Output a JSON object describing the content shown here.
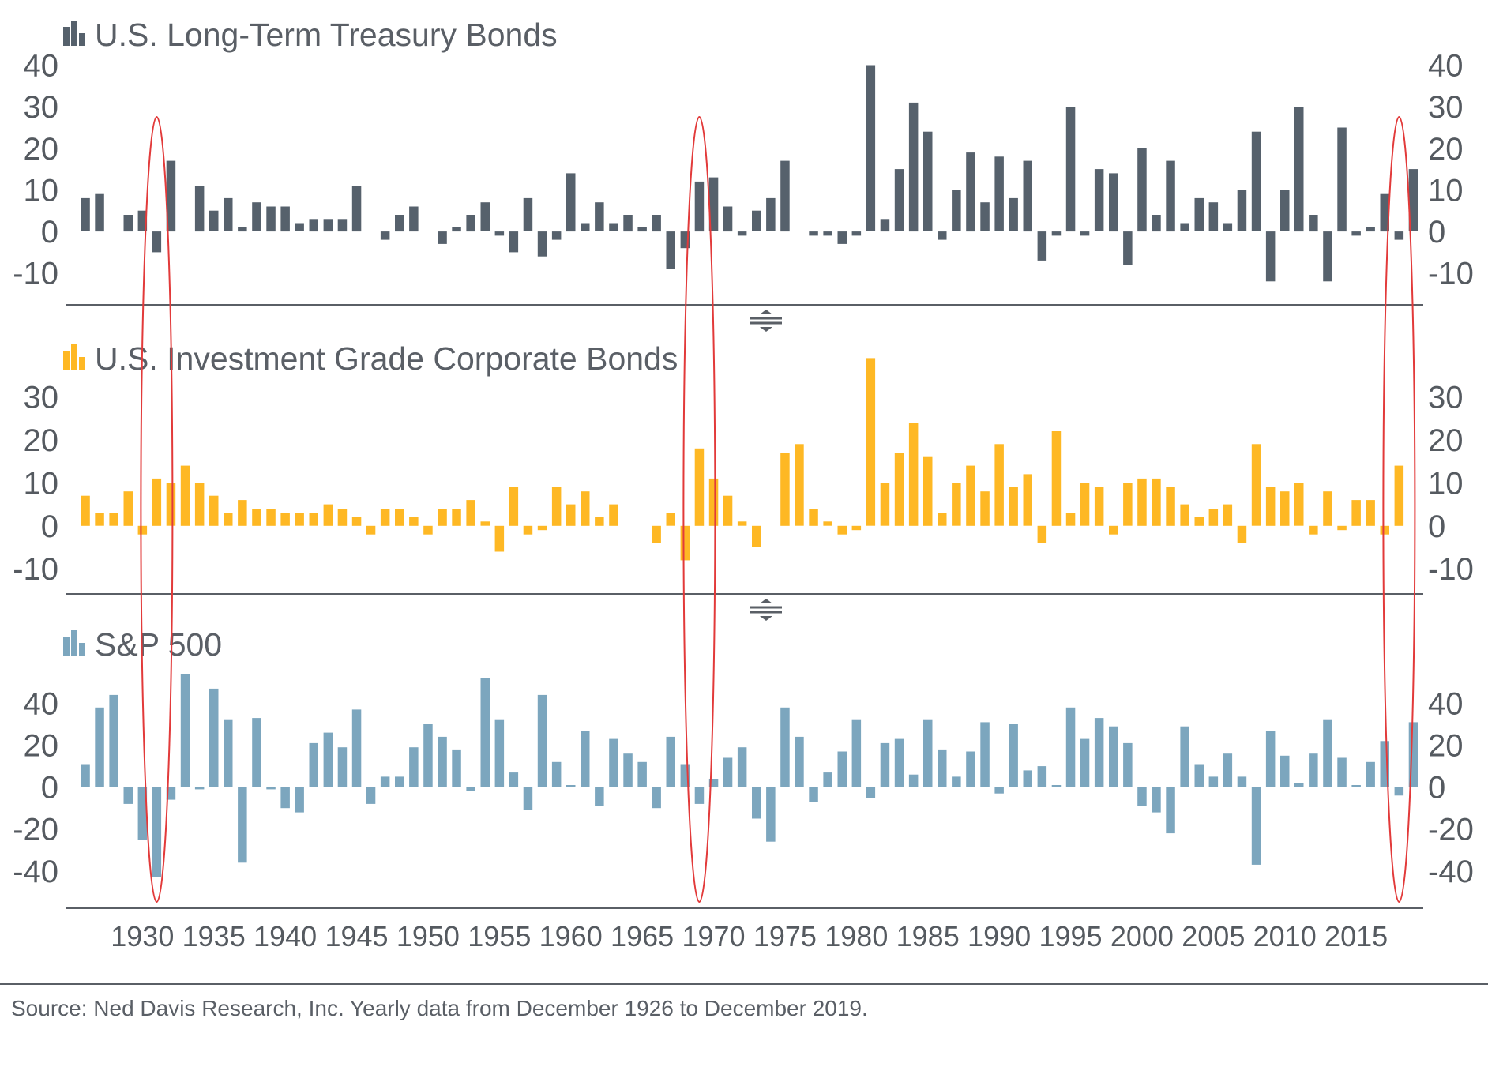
{
  "chart_data": [
    {
      "type": "bar",
      "title": "U.S. Long-Term Treasury Bonds",
      "color": "#56616c",
      "ylim": [
        -15,
        42
      ],
      "yticks": [
        40,
        30,
        20,
        10,
        0,
        -10
      ],
      "x": [
        1926,
        1927,
        1928,
        1929,
        1930,
        1931,
        1932,
        1933,
        1934,
        1935,
        1936,
        1937,
        1938,
        1939,
        1940,
        1941,
        1942,
        1943,
        1944,
        1945,
        1946,
        1947,
        1948,
        1949,
        1950,
        1951,
        1952,
        1953,
        1954,
        1955,
        1956,
        1957,
        1958,
        1959,
        1960,
        1961,
        1962,
        1963,
        1964,
        1965,
        1966,
        1967,
        1968,
        1969,
        1970,
        1971,
        1972,
        1973,
        1974,
        1975,
        1976,
        1977,
        1978,
        1979,
        1980,
        1981,
        1982,
        1983,
        1984,
        1985,
        1986,
        1987,
        1988,
        1989,
        1990,
        1991,
        1992,
        1993,
        1994,
        1995,
        1996,
        1997,
        1998,
        1999,
        2000,
        2001,
        2002,
        2003,
        2004,
        2005,
        2006,
        2007,
        2008,
        2009,
        2010,
        2011,
        2012,
        2013,
        2014,
        2015,
        2016,
        2017,
        2018,
        2019
      ],
      "values": [
        8,
        9,
        0,
        4,
        5,
        -5,
        17,
        0,
        11,
        5,
        8,
        1,
        7,
        6,
        6,
        2,
        3,
        3,
        3,
        11,
        0,
        -2,
        4,
        6,
        0,
        -3,
        1,
        4,
        7,
        -1,
        -5,
        8,
        -6,
        -2,
        14,
        2,
        7,
        2,
        4,
        1,
        4,
        -9,
        -4,
        12,
        13,
        6,
        -1,
        5,
        8,
        17,
        0,
        -1,
        -1,
        -3,
        -1,
        40,
        3,
        15,
        31,
        24,
        -2,
        10,
        19,
        7,
        18,
        8,
        17,
        -7,
        -1,
        30,
        -1,
        15,
        14,
        -8,
        20,
        4,
        17,
        2,
        8,
        7,
        2,
        10,
        24,
        -12,
        10,
        30,
        4,
        -12,
        25,
        -1,
        1,
        9,
        -2,
        15
      ]
    },
    {
      "type": "bar",
      "title": "U.S. Investment Grade Corporate Bonds",
      "color": "#feb824",
      "ylim": [
        -14,
        40
      ],
      "yticks": [
        30,
        20,
        10,
        0,
        -10
      ],
      "x": [
        1926,
        1927,
        1928,
        1929,
        1930,
        1931,
        1932,
        1933,
        1934,
        1935,
        1936,
        1937,
        1938,
        1939,
        1940,
        1941,
        1942,
        1943,
        1944,
        1945,
        1946,
        1947,
        1948,
        1949,
        1950,
        1951,
        1952,
        1953,
        1954,
        1955,
        1956,
        1957,
        1958,
        1959,
        1960,
        1961,
        1962,
        1963,
        1964,
        1965,
        1966,
        1967,
        1968,
        1969,
        1970,
        1971,
        1972,
        1973,
        1974,
        1975,
        1976,
        1977,
        1978,
        1979,
        1980,
        1981,
        1982,
        1983,
        1984,
        1985,
        1986,
        1987,
        1988,
        1989,
        1990,
        1991,
        1992,
        1993,
        1994,
        1995,
        1996,
        1997,
        1998,
        1999,
        2000,
        2001,
        2002,
        2003,
        2004,
        2005,
        2006,
        2007,
        2008,
        2009,
        2010,
        2011,
        2012,
        2013,
        2014,
        2015,
        2016,
        2017,
        2018,
        2019
      ],
      "values": [
        7,
        3,
        3,
        8,
        -2,
        11,
        10,
        14,
        10,
        7,
        3,
        6,
        4,
        4,
        3,
        3,
        3,
        5,
        4,
        2,
        -2,
        4,
        4,
        2,
        -2,
        4,
        4,
        6,
        1,
        -6,
        9,
        -2,
        -1,
        9,
        5,
        8,
        2,
        5,
        0,
        0,
        -4,
        3,
        -8,
        18,
        11,
        7,
        1,
        -5,
        0,
        17,
        19,
        4,
        1,
        -2,
        -1,
        39,
        10,
        17,
        24,
        16,
        3,
        10,
        14,
        8,
        19,
        9,
        12,
        -4,
        22,
        3,
        10,
        9,
        -2,
        10,
        11,
        11,
        9,
        5,
        2,
        4,
        5,
        -4,
        19,
        9,
        8,
        10,
        -2,
        8,
        -1,
        6,
        6,
        -2,
        14,
        0
      ]
    },
    {
      "type": "bar",
      "title": "S&P 500",
      "color": "#7ca6be",
      "ylim": [
        -54,
        56
      ],
      "yticks": [
        40,
        20,
        0,
        -20,
        -40
      ],
      "x": [
        1926,
        1927,
        1928,
        1929,
        1930,
        1931,
        1932,
        1933,
        1934,
        1935,
        1936,
        1937,
        1938,
        1939,
        1940,
        1941,
        1942,
        1943,
        1944,
        1945,
        1946,
        1947,
        1948,
        1949,
        1950,
        1951,
        1952,
        1953,
        1954,
        1955,
        1956,
        1957,
        1958,
        1959,
        1960,
        1961,
        1962,
        1963,
        1964,
        1965,
        1966,
        1967,
        1968,
        1969,
        1970,
        1971,
        1972,
        1973,
        1974,
        1975,
        1976,
        1977,
        1978,
        1979,
        1980,
        1981,
        1982,
        1983,
        1984,
        1985,
        1986,
        1987,
        1988,
        1989,
        1990,
        1991,
        1992,
        1993,
        1994,
        1995,
        1996,
        1997,
        1998,
        1999,
        2000,
        2001,
        2002,
        2003,
        2004,
        2005,
        2006,
        2007,
        2008,
        2009,
        2010,
        2011,
        2012,
        2013,
        2014,
        2015,
        2016,
        2017,
        2018,
        2019
      ],
      "values": [
        11,
        38,
        44,
        -8,
        -25,
        -43,
        -6,
        54,
        -1,
        47,
        32,
        -36,
        33,
        -1,
        -10,
        -12,
        21,
        26,
        19,
        37,
        -8,
        5,
        5,
        19,
        30,
        24,
        18,
        -2,
        52,
        32,
        7,
        -11,
        44,
        12,
        1,
        27,
        -9,
        23,
        16,
        12,
        -10,
        24,
        11,
        -8,
        4,
        14,
        19,
        -15,
        -26,
        38,
        24,
        -7,
        7,
        17,
        32,
        -5,
        21,
        23,
        6,
        32,
        18,
        5,
        17,
        31,
        -3,
        30,
        8,
        10,
        1,
        38,
        23,
        33,
        29,
        21,
        -9,
        -12,
        -22,
        29,
        11,
        5,
        16,
        5,
        -37,
        27,
        15,
        2,
        16,
        32,
        14,
        1,
        12,
        22,
        -4,
        31
      ]
    }
  ],
  "x_tick_labels": [
    "1930",
    "1935",
    "1940",
    "1945",
    "1950",
    "1955",
    "1960",
    "1965",
    "1970",
    "1975",
    "1980",
    "1985",
    "1990",
    "1995",
    "2000",
    "2005",
    "2010",
    "2015"
  ],
  "highlighted_years": [
    1931,
    1969,
    2018
  ],
  "highlight_color": "#e23a3a",
  "source": "Source: Ned Davis Research, Inc. Yearly data from December 1926 to December 2019."
}
